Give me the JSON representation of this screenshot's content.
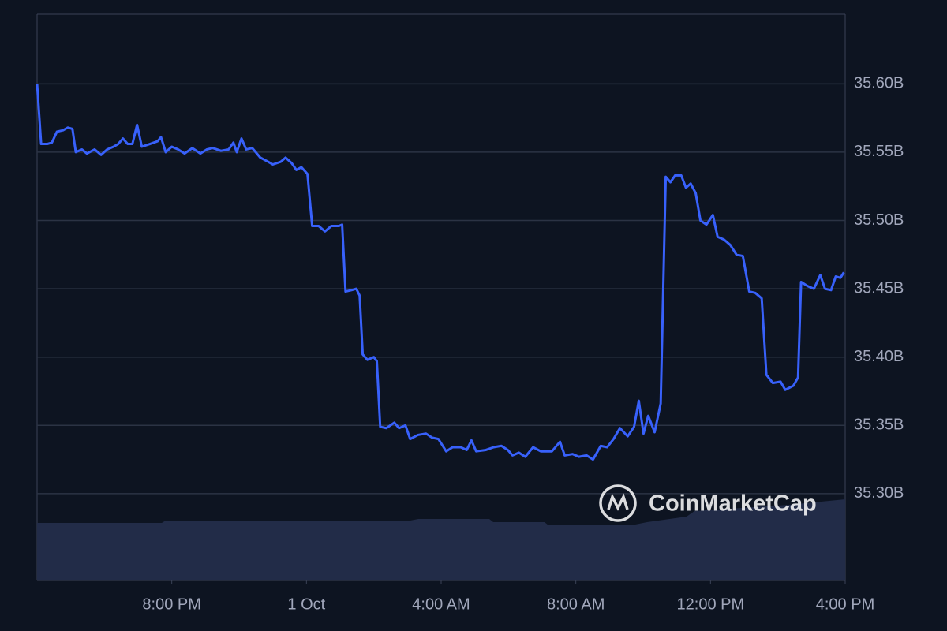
{
  "chart_data": {
    "type": "line",
    "color": "#3861fb",
    "grid": true,
    "watermark": "CoinMarketCap",
    "xlim": [
      0,
      24
    ],
    "ylim": [
      35.237,
      35.651
    ],
    "xticks": [
      {
        "value": 4,
        "label": "8:00 PM"
      },
      {
        "value": 8,
        "label": "1 Oct"
      },
      {
        "value": 12,
        "label": "4:00 AM"
      },
      {
        "value": 16,
        "label": "8:00 AM"
      },
      {
        "value": 20,
        "label": "12:00 PM"
      },
      {
        "value": 24,
        "label": "4:00 PM"
      }
    ],
    "yticks": [
      {
        "value": 35.3,
        "label": "35.30B"
      },
      {
        "value": 35.35,
        "label": "35.35B"
      },
      {
        "value": 35.4,
        "label": "35.40B"
      },
      {
        "value": 35.45,
        "label": "35.45B"
      },
      {
        "value": 35.5,
        "label": "35.50B"
      },
      {
        "value": 35.55,
        "label": "35.55B"
      },
      {
        "value": 35.6,
        "label": "35.60B"
      }
    ],
    "x": [
      0,
      0.12,
      0.3,
      0.44,
      0.59,
      0.77,
      0.91,
      1.05,
      1.15,
      1.33,
      1.48,
      1.71,
      1.9,
      2.08,
      2.27,
      2.41,
      2.55,
      2.69,
      2.83,
      2.97,
      3.11,
      3.35,
      3.58,
      3.68,
      3.82,
      4.0,
      4.19,
      4.38,
      4.61,
      4.85,
      5.04,
      5.22,
      5.46,
      5.69,
      5.83,
      5.93,
      6.07,
      6.21,
      6.39,
      6.63,
      6.86,
      7.0,
      7.24,
      7.38,
      7.56,
      7.7,
      7.85,
      8.03,
      8.17,
      8.36,
      8.55,
      8.74,
      8.97,
      9.06,
      9.16,
      9.34,
      9.48,
      9.58,
      9.67,
      9.81,
      10.0,
      10.09,
      10.19,
      10.37,
      10.61,
      10.75,
      10.94,
      11.08,
      11.31,
      11.55,
      11.73,
      11.92,
      12.15,
      12.34,
      12.58,
      12.76,
      12.9,
      13.04,
      13.33,
      13.56,
      13.79,
      13.98,
      14.12,
      14.31,
      14.5,
      14.73,
      14.96,
      15.29,
      15.53,
      15.67,
      15.9,
      16.09,
      16.32,
      16.51,
      16.74,
      16.93,
      17.12,
      17.31,
      17.54,
      17.73,
      17.87,
      18.01,
      18.15,
      18.34,
      18.52,
      18.67,
      18.81,
      18.95,
      19.13,
      19.27,
      19.41,
      19.56,
      19.7,
      19.88,
      20.07,
      20.21,
      20.4,
      20.59,
      20.77,
      20.96,
      21.15,
      21.33,
      21.52,
      21.66,
      21.85,
      22.08,
      22.22,
      22.46,
      22.6,
      22.69,
      22.88,
      23.07,
      23.26,
      23.4,
      23.58,
      23.72,
      23.86,
      23.96
    ],
    "values": [
      35.6,
      35.556,
      35.556,
      35.557,
      35.565,
      35.566,
      35.568,
      35.567,
      35.55,
      35.552,
      35.549,
      35.552,
      35.548,
      35.552,
      35.554,
      35.556,
      35.56,
      35.556,
      35.556,
      35.57,
      35.554,
      35.556,
      35.558,
      35.561,
      35.55,
      35.554,
      35.552,
      35.549,
      35.553,
      35.549,
      35.552,
      35.553,
      35.551,
      35.552,
      35.557,
      35.55,
      35.56,
      35.552,
      35.553,
      35.546,
      35.543,
      35.541,
      35.543,
      35.546,
      35.542,
      35.537,
      35.539,
      35.534,
      35.496,
      35.496,
      35.492,
      35.496,
      35.496,
      35.497,
      35.448,
      35.449,
      35.45,
      35.445,
      35.402,
      35.398,
      35.4,
      35.397,
      35.349,
      35.348,
      35.352,
      35.348,
      35.35,
      35.34,
      35.343,
      35.344,
      35.341,
      35.34,
      35.331,
      35.334,
      35.334,
      35.332,
      35.339,
      35.331,
      35.332,
      35.334,
      35.335,
      35.332,
      35.328,
      35.33,
      35.327,
      35.334,
      35.331,
      35.331,
      35.338,
      35.328,
      35.329,
      35.327,
      35.328,
      35.325,
      35.335,
      35.334,
      35.34,
      35.348,
      35.342,
      35.349,
      35.368,
      35.344,
      35.357,
      35.345,
      35.366,
      35.532,
      35.528,
      35.533,
      35.533,
      35.524,
      35.527,
      35.52,
      35.5,
      35.497,
      35.504,
      35.488,
      35.486,
      35.482,
      35.475,
      35.474,
      35.448,
      35.447,
      35.443,
      35.387,
      35.381,
      35.382,
      35.376,
      35.379,
      35.385,
      35.455,
      35.452,
      35.45,
      35.46,
      35.45,
      35.449,
      35.459,
      35.458,
      35.462
    ]
  }
}
